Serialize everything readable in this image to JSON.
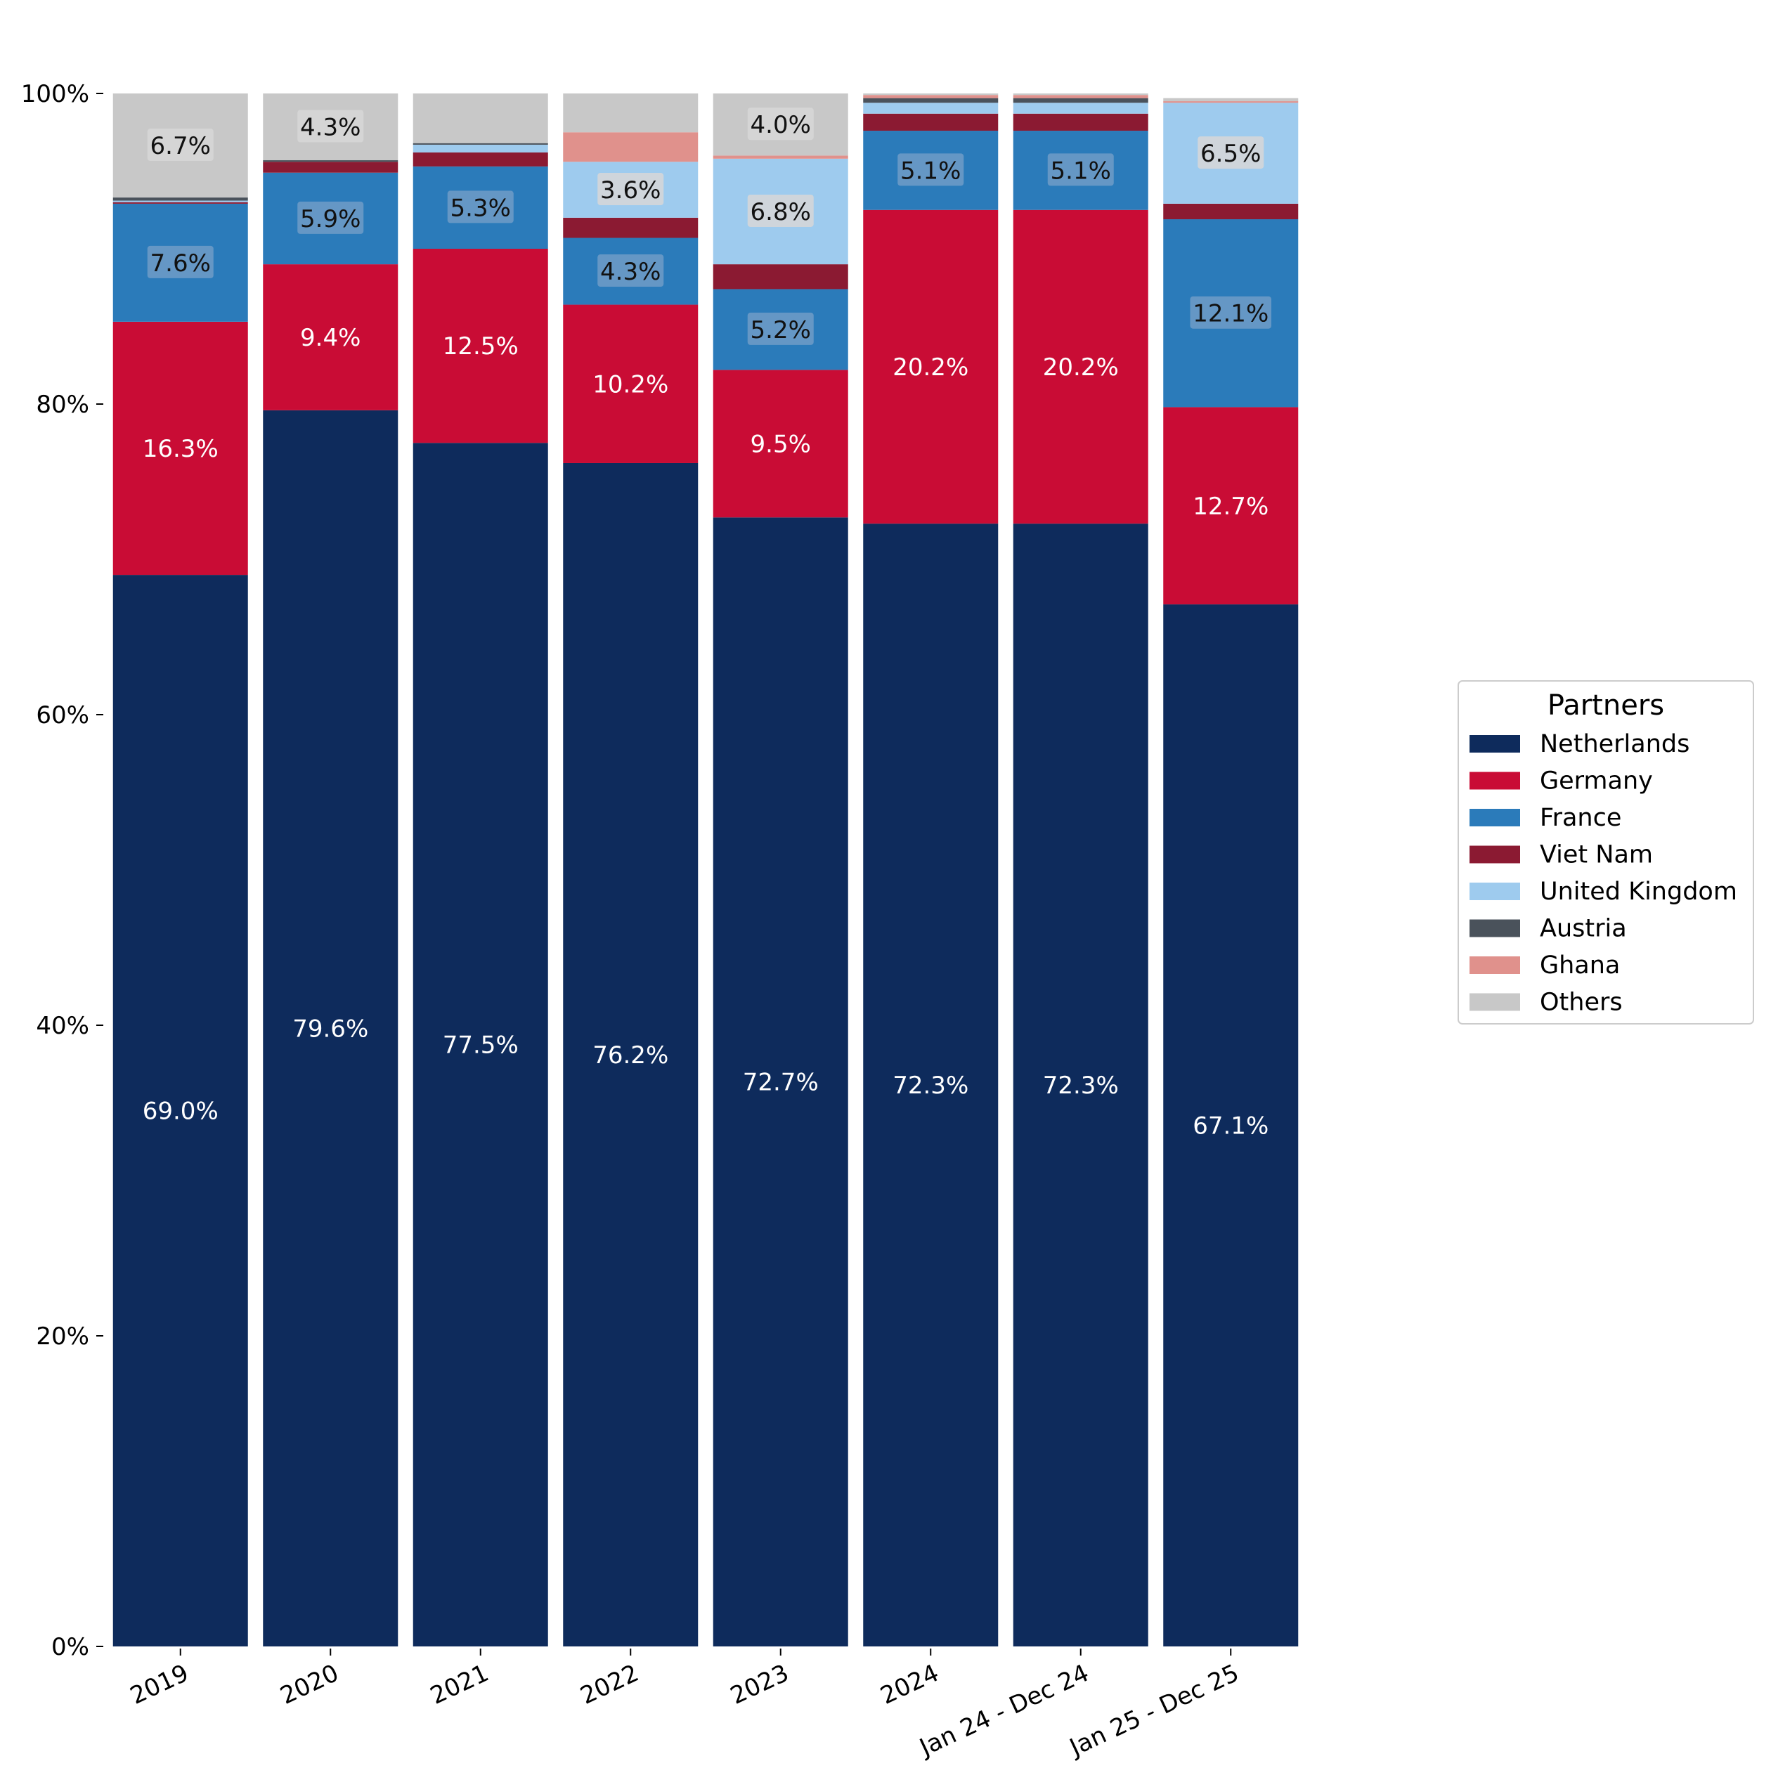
{
  "chart_data": {
    "type": "bar",
    "stacked": true,
    "categories": [
      "2019",
      "2020",
      "2021",
      "2022",
      "2023",
      "2024",
      "Jan 24 - Dec 24",
      "Jan 25 - Dec 25"
    ],
    "ylim": [
      0,
      100
    ],
    "yticks": [
      0,
      20,
      40,
      60,
      80,
      100
    ],
    "ytick_labels": [
      "0%",
      "20%",
      "40%",
      "60%",
      "80%",
      "100%"
    ],
    "legend_title": "Partners",
    "legend_position": "right",
    "grid": false,
    "series": [
      {
        "name": "Netherlands",
        "color": "#0e2b5c",
        "values": [
          69.0,
          79.6,
          77.5,
          76.2,
          72.7,
          72.3,
          72.3,
          67.1
        ]
      },
      {
        "name": "Germany",
        "color": "#c90c35",
        "values": [
          16.3,
          9.4,
          12.5,
          10.2,
          9.5,
          20.2,
          20.2,
          12.7
        ]
      },
      {
        "name": "France",
        "color": "#2b7bba",
        "values": [
          7.6,
          5.9,
          5.3,
          4.3,
          5.2,
          5.1,
          5.1,
          12.1
        ]
      },
      {
        "name": "Viet Nam",
        "color": "#8b1a32",
        "values": [
          0.1,
          0.7,
          0.9,
          1.3,
          1.6,
          1.1,
          1.1,
          1.0
        ]
      },
      {
        "name": "United Kingdom",
        "color": "#9ecbee",
        "values": [
          0.1,
          0.0,
          0.5,
          3.6,
          6.8,
          0.7,
          0.7,
          6.5
        ]
      },
      {
        "name": "Austria",
        "color": "#4a525b",
        "values": [
          0.2,
          0.1,
          0.1,
          0.0,
          0.0,
          0.3,
          0.3,
          0.0
        ]
      },
      {
        "name": "Ghana",
        "color": "#e0918c",
        "values": [
          0.0,
          0.0,
          0.0,
          1.9,
          0.2,
          0.2,
          0.2,
          0.1
        ]
      },
      {
        "name": "Others",
        "color": "#c8c8c8",
        "values": [
          6.7,
          4.3,
          3.2,
          2.5,
          4.0,
          0.1,
          0.1,
          0.2
        ]
      }
    ],
    "data_labels": [
      {
        "category": 0,
        "series": "Netherlands",
        "text": "69.0%"
      },
      {
        "category": 0,
        "series": "Germany",
        "text": "16.3%"
      },
      {
        "category": 0,
        "series": "France",
        "text": "7.6%"
      },
      {
        "category": 0,
        "series": "Others",
        "text": "6.7%"
      },
      {
        "category": 1,
        "series": "Netherlands",
        "text": "79.6%"
      },
      {
        "category": 1,
        "series": "Germany",
        "text": "9.4%"
      },
      {
        "category": 1,
        "series": "France",
        "text": "5.9%"
      },
      {
        "category": 1,
        "series": "Others",
        "text": "4.3%"
      },
      {
        "category": 2,
        "series": "Netherlands",
        "text": "77.5%"
      },
      {
        "category": 2,
        "series": "Germany",
        "text": "12.5%"
      },
      {
        "category": 2,
        "series": "France",
        "text": "5.3%"
      },
      {
        "category": 3,
        "series": "Netherlands",
        "text": "76.2%"
      },
      {
        "category": 3,
        "series": "Germany",
        "text": "10.2%"
      },
      {
        "category": 3,
        "series": "France",
        "text": "4.3%"
      },
      {
        "category": 3,
        "series": "United Kingdom",
        "text": "3.6%"
      },
      {
        "category": 4,
        "series": "Netherlands",
        "text": "72.7%"
      },
      {
        "category": 4,
        "series": "Germany",
        "text": "9.5%"
      },
      {
        "category": 4,
        "series": "France",
        "text": "5.2%"
      },
      {
        "category": 4,
        "series": "United Kingdom",
        "text": "6.8%"
      },
      {
        "category": 4,
        "series": "Others",
        "text": "4.0%"
      },
      {
        "category": 5,
        "series": "Netherlands",
        "text": "72.3%"
      },
      {
        "category": 5,
        "series": "Germany",
        "text": "20.2%"
      },
      {
        "category": 5,
        "series": "France",
        "text": "5.1%"
      },
      {
        "category": 6,
        "series": "Netherlands",
        "text": "72.3%"
      },
      {
        "category": 6,
        "series": "Germany",
        "text": "20.2%"
      },
      {
        "category": 6,
        "series": "France",
        "text": "5.1%"
      },
      {
        "category": 7,
        "series": "Netherlands",
        "text": "67.1%"
      },
      {
        "category": 7,
        "series": "Germany",
        "text": "12.7%"
      },
      {
        "category": 7,
        "series": "France",
        "text": "12.1%"
      },
      {
        "category": 7,
        "series": "United Kingdom",
        "text": "6.5%"
      }
    ]
  }
}
